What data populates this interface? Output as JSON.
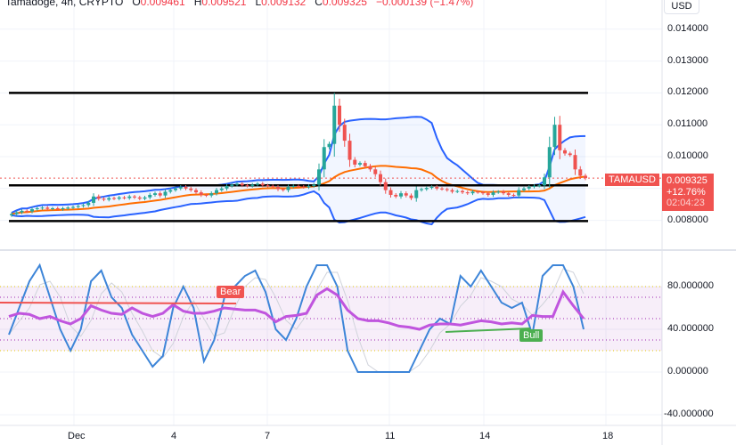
{
  "header": {
    "symbol": "Tamadoge, 4h, CRYPTO",
    "o_label": "O",
    "o": "0.009461",
    "h_label": "H",
    "h": "0.009521",
    "l_label": "L",
    "l": "0.009132",
    "c_label": "C",
    "c": "0.009325",
    "change": "−0.000139 (−1.47%)"
  },
  "currency_button": "USD",
  "last_price": {
    "symbol": "TAMAUSD",
    "price": "0.009325",
    "change_pct": "+12.76%",
    "countdown": "02:04:23"
  },
  "colors": {
    "up": "#26a69a",
    "down": "#ef5350",
    "bands": "#2962ff",
    "basis": "#ff6d00",
    "rsi": "#c055de",
    "stoch": "#3d85d8",
    "bear": "#f05350",
    "bull": "#4caf50"
  },
  "chart_data": [
    {
      "type": "candlestick",
      "title": "Tamadoge, 4h, CRYPTO",
      "y_ticks": [
        "0.014000",
        "0.013000",
        "0.012000",
        "0.011000",
        "0.010000",
        "0.008000"
      ],
      "x_ticks": [
        "Dec",
        "4",
        "7",
        "11",
        "14",
        "18"
      ],
      "ylim": [
        0.0077,
        0.0145
      ],
      "indicators": [
        "Bollinger Bands (20, 2)"
      ],
      "horizontal_levels": [
        0.012,
        0.0091,
        0.00798
      ],
      "closes": [
        0.0082,
        0.00825,
        0.0083,
        0.00828,
        0.00835,
        0.00838,
        0.0084,
        0.00836,
        0.00838,
        0.00835,
        0.00838,
        0.0084,
        0.00842,
        0.00845,
        0.00848,
        0.00855,
        0.00875,
        0.00868,
        0.00865,
        0.0087,
        0.00868,
        0.00872,
        0.0087,
        0.00875,
        0.00872,
        0.00868,
        0.00872,
        0.0088,
        0.00885,
        0.00878,
        0.0089,
        0.00895,
        0.009,
        0.00905,
        0.009,
        0.00895,
        0.00888,
        0.0088,
        0.00878,
        0.00885,
        0.00895,
        0.009,
        0.00908,
        0.00912,
        0.00915,
        0.0091,
        0.00908,
        0.00912,
        0.00915,
        0.0091,
        0.00908,
        0.00905,
        0.00898,
        0.00895,
        0.00905,
        0.00908,
        0.00906,
        0.00904,
        0.00908,
        0.00912,
        0.0096,
        0.0103,
        0.0104,
        0.0116,
        0.011,
        0.0105,
        0.0099,
        0.00975,
        0.0098,
        0.0097,
        0.0096,
        0.00945,
        0.0092,
        0.00895,
        0.0088,
        0.00875,
        0.00885,
        0.00878,
        0.0087,
        0.00895,
        0.00898,
        0.00902,
        0.00905,
        0.009,
        0.00898,
        0.00895,
        0.0089,
        0.00892,
        0.00888,
        0.00885,
        0.0089,
        0.00888,
        0.00885,
        0.0088,
        0.00888,
        0.0089,
        0.00885,
        0.0088,
        0.00878,
        0.00895,
        0.009,
        0.00905,
        0.00908,
        0.0091,
        0.00935,
        0.0103,
        0.011,
        0.0102,
        0.0101,
        0.01005,
        0.0096,
        0.0094,
        0.009325
      ]
    },
    {
      "type": "line",
      "y_ticks": [
        "80.000000",
        "40.000000",
        "0.000000",
        "-40.000000"
      ],
      "ylim": [
        -50,
        105
      ],
      "bands": {
        "upper": 80,
        "lower": 20,
        "dotted": [
          70,
          50,
          30
        ]
      },
      "series": [
        {
          "key": "rsi",
          "values": [
            52,
            55,
            54,
            50,
            52,
            48,
            45,
            50,
            62,
            58,
            55,
            54,
            60,
            55,
            52,
            55,
            63,
            57,
            55,
            55,
            57,
            60,
            59,
            58,
            58,
            55,
            47,
            52,
            53,
            55,
            72,
            78,
            72,
            58,
            50,
            48,
            48,
            46,
            43,
            42,
            40,
            44,
            45,
            45,
            44,
            46,
            48,
            47,
            45,
            46,
            45,
            53,
            52,
            52,
            75,
            62,
            50
          ]
        },
        {
          "key": "stoch",
          "values": [
            35,
            60,
            85,
            100,
            70,
            40,
            20,
            40,
            85,
            95,
            70,
            60,
            35,
            20,
            5,
            15,
            60,
            80,
            60,
            10,
            30,
            70,
            80,
            90,
            95,
            75,
            40,
            30,
            50,
            80,
            100,
            100,
            80,
            20,
            0,
            0,
            0,
            0,
            0,
            0,
            20,
            40,
            50,
            45,
            90,
            80,
            95,
            80,
            65,
            60,
            65,
            35,
            90,
            100,
            100,
            80,
            40
          ]
        }
      ],
      "annotations": [
        {
          "label": "Bear"
        },
        {
          "label": "Bull"
        }
      ]
    }
  ]
}
